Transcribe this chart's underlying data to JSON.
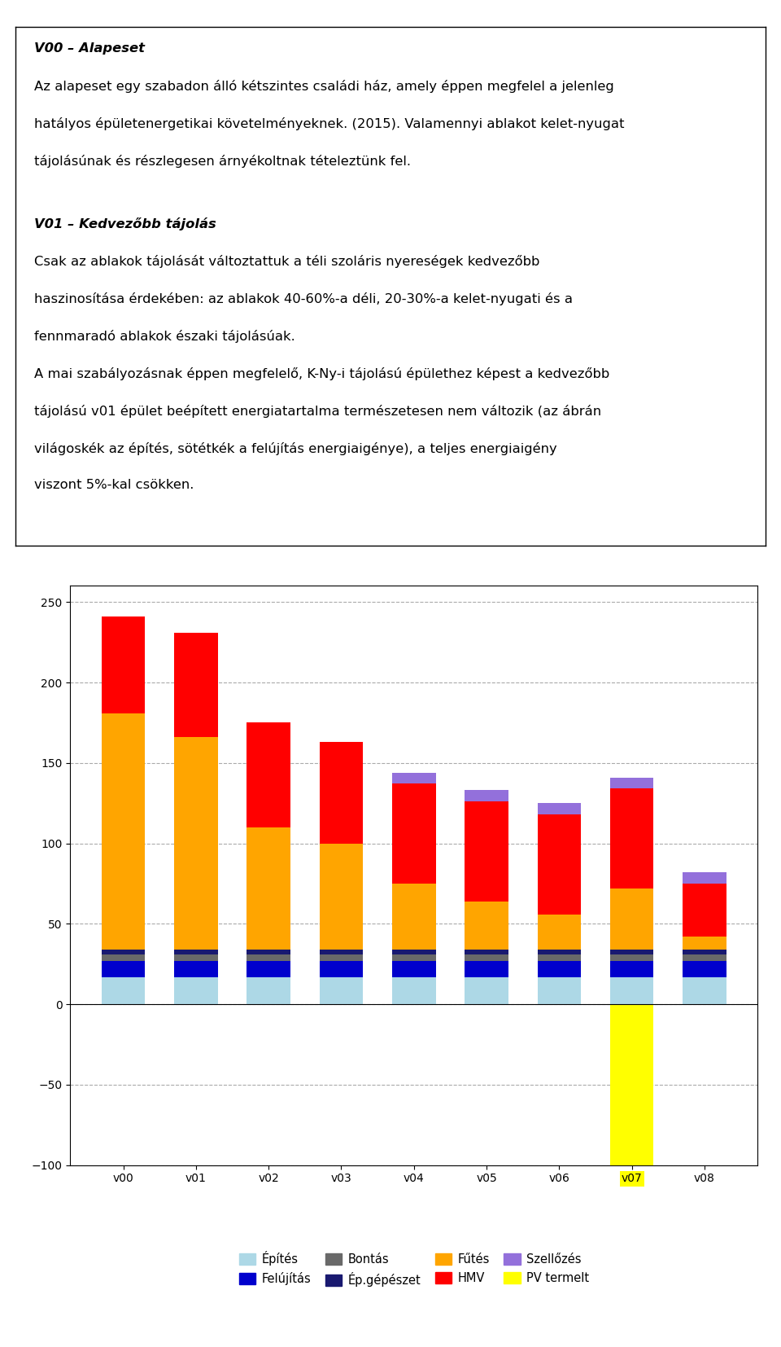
{
  "categories": [
    "v00",
    "v01",
    "v02",
    "v03",
    "v04",
    "v05",
    "v06",
    "v07",
    "v08"
  ],
  "series": {
    "Építés": [
      17,
      17,
      17,
      17,
      17,
      17,
      17,
      17,
      17
    ],
    "Felújítás": [
      10,
      10,
      10,
      10,
      10,
      10,
      10,
      10,
      10
    ],
    "Bontás": [
      4,
      4,
      4,
      4,
      4,
      4,
      4,
      4,
      4
    ],
    "Ép.gépészet": [
      3,
      3,
      3,
      3,
      3,
      3,
      3,
      3,
      3
    ],
    "Fűtés": [
      147,
      132,
      76,
      66,
      41,
      30,
      22,
      38,
      8
    ],
    "HMV": [
      60,
      65,
      65,
      63,
      62,
      62,
      62,
      62,
      33
    ],
    "Szellőzés": [
      0,
      0,
      0,
      0,
      7,
      7,
      7,
      7,
      7
    ],
    "PV termelt": [
      0,
      0,
      0,
      0,
      0,
      0,
      0,
      -100,
      0
    ]
  },
  "colors": {
    "Építés": "#add8e6",
    "Felújítás": "#0000cd",
    "Bontás": "#696969",
    "Ép.gépészet": "#191970",
    "Fűtés": "#FFA500",
    "HMV": "#FF0000",
    "Szellőzés": "#9370DB",
    "PV termelt": "#FFFF00"
  },
  "v07_label_color": "#FFFF00",
  "ylim": [
    -100,
    260
  ],
  "yticks": [
    -100,
    -50,
    0,
    50,
    100,
    150,
    200,
    250
  ],
  "background_color": "#ffffff",
  "chart_bg": "#ffffff",
  "grid_color": "#aaaaaa",
  "text_lines": [
    {
      "text": "V00 – Alapeset",
      "bold_italic": true
    },
    {
      "text": "Az alapeset egy szabadon álló kétszintes családi ház, amely éppen megfelel a jelenleg hatályos épületenergetikai követelményeknek. (2015). Valamennyi ablakot kelet-nyugat tájolásúnak és részlegesen árnyékoltnak tételeztünk fel.",
      "bold_italic": false
    },
    {
      "text": "",
      "bold_italic": false
    },
    {
      "text": "V01 – Kedvezőbb tájolás",
      "bold_italic": true
    },
    {
      "text": "Csak az ablakok tájolását változtattuk a téli szoláris nyereségek kedvezőbb haszinosítása érdekében: az ablakok 40-60%-a déli, 20-30%-a kelet-nyugati és a fennmaradó ablakok északi tájolásúak.",
      "bold_italic": false
    },
    {
      "text": "A mai szabályozásnak éppen megfelelő, K-Ny-i tájolású épülethez képest a kedvezőbb tájolású v01 épület beépített energiatartalma természetesen nem változik (az ábrán világoskék az építés, sötétkék a felújítás energiaigénye), a teljes energiaigény viszont 5%-kal csökken.",
      "bold_italic": false
    }
  ],
  "legend_order": [
    "Építés",
    "Felújítás",
    "Bontás",
    "Ép.gépészet",
    "Fűtés",
    "HMV",
    "Szellőzés",
    "PV termelt"
  ]
}
